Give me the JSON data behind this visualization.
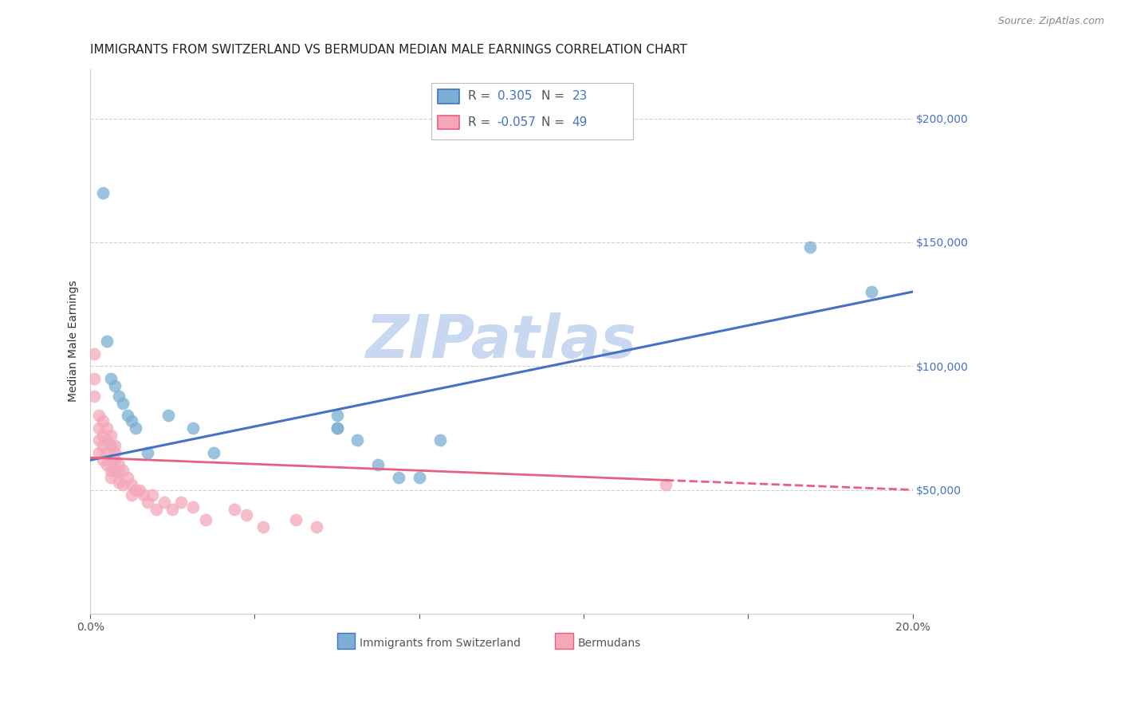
{
  "title": "IMMIGRANTS FROM SWITZERLAND VS BERMUDAN MEDIAN MALE EARNINGS CORRELATION CHART",
  "source": "Source: ZipAtlas.com",
  "ylabel": "Median Male Earnings",
  "xlim": [
    0.0,
    0.2
  ],
  "ylim": [
    0,
    220000
  ],
  "xticks": [
    0.0,
    0.04,
    0.08,
    0.12,
    0.16,
    0.2
  ],
  "xticklabels": [
    "0.0%",
    "",
    "",
    "",
    "",
    "20.0%"
  ],
  "yticks_right": [
    50000,
    100000,
    150000,
    200000
  ],
  "ytick_labels_right": [
    "$50,000",
    "$100,000",
    "$150,000",
    "$200,000"
  ],
  "grid_color": "#d0d0d0",
  "background_color": "#ffffff",
  "blue_scatter_x": [
    0.003,
    0.004,
    0.005,
    0.006,
    0.007,
    0.008,
    0.009,
    0.01,
    0.011,
    0.014,
    0.019,
    0.025,
    0.03,
    0.06,
    0.065,
    0.07,
    0.075,
    0.06,
    0.08,
    0.085,
    0.06,
    0.175,
    0.19
  ],
  "blue_scatter_y": [
    170000,
    110000,
    95000,
    92000,
    88000,
    85000,
    80000,
    78000,
    75000,
    65000,
    80000,
    75000,
    65000,
    80000,
    70000,
    60000,
    55000,
    75000,
    55000,
    70000,
    75000,
    148000,
    130000
  ],
  "pink_scatter_x": [
    0.001,
    0.001,
    0.001,
    0.002,
    0.002,
    0.002,
    0.002,
    0.003,
    0.003,
    0.003,
    0.003,
    0.004,
    0.004,
    0.004,
    0.004,
    0.005,
    0.005,
    0.005,
    0.005,
    0.005,
    0.006,
    0.006,
    0.006,
    0.006,
    0.007,
    0.007,
    0.007,
    0.008,
    0.008,
    0.009,
    0.01,
    0.01,
    0.011,
    0.012,
    0.013,
    0.014,
    0.015,
    0.016,
    0.018,
    0.02,
    0.022,
    0.025,
    0.028,
    0.035,
    0.038,
    0.042,
    0.05,
    0.055,
    0.14
  ],
  "pink_scatter_y": [
    105000,
    95000,
    88000,
    80000,
    75000,
    70000,
    65000,
    78000,
    72000,
    68000,
    62000,
    75000,
    70000,
    65000,
    60000,
    72000,
    68000,
    62000,
    58000,
    55000,
    68000,
    65000,
    62000,
    58000,
    60000,
    57000,
    53000,
    58000,
    52000,
    55000,
    52000,
    48000,
    50000,
    50000,
    48000,
    45000,
    48000,
    42000,
    45000,
    42000,
    45000,
    43000,
    38000,
    42000,
    40000,
    35000,
    38000,
    35000,
    52000
  ],
  "blue_trend_x": [
    0.0,
    0.2
  ],
  "blue_trend_y": [
    62000,
    130000
  ],
  "pink_trend_x": [
    0.0,
    0.2
  ],
  "pink_trend_y": [
    63000,
    50000
  ],
  "blue_color": "#7bafd4",
  "blue_edge_color": "#4472c4",
  "pink_color": "#f4a7b9",
  "pink_edge_color": "#e86080",
  "blue_trend_color": "#4472c4",
  "pink_trend_color": "#e86080",
  "watermark": "ZIPatlas",
  "watermark_color": "#c8d8f0",
  "title_fontsize": 11,
  "axis_label_fontsize": 10,
  "tick_fontsize": 10,
  "right_tick_color": "#4472c4",
  "legend_R1": "0.305",
  "legend_N1": "23",
  "legend_R2": "-0.057",
  "legend_N2": "49"
}
